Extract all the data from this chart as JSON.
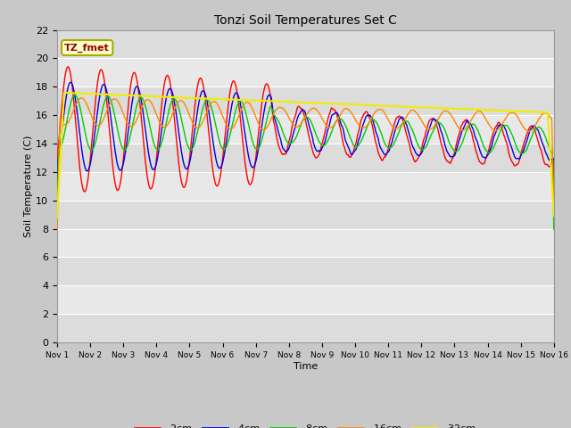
{
  "title": "Tonzi Soil Temperatures Set C",
  "xlabel": "Time",
  "ylabel": "Soil Temperature (C)",
  "ylim": [
    0,
    22
  ],
  "yticks": [
    0,
    2,
    4,
    6,
    8,
    10,
    12,
    14,
    16,
    18,
    20,
    22
  ],
  "colors": {
    "-2cm": "#FF0000",
    "-4cm": "#0000DD",
    "-8cm": "#00CC00",
    "-16cm": "#FF8800",
    "-32cm": "#EEEE00"
  },
  "legend_label": "TZ_fmet",
  "fig_bg": "#C8C8C8",
  "plot_bg_light": "#E8E8E8",
  "plot_bg_dark": "#D8D8D8",
  "grid_color": "#FFFFFF"
}
